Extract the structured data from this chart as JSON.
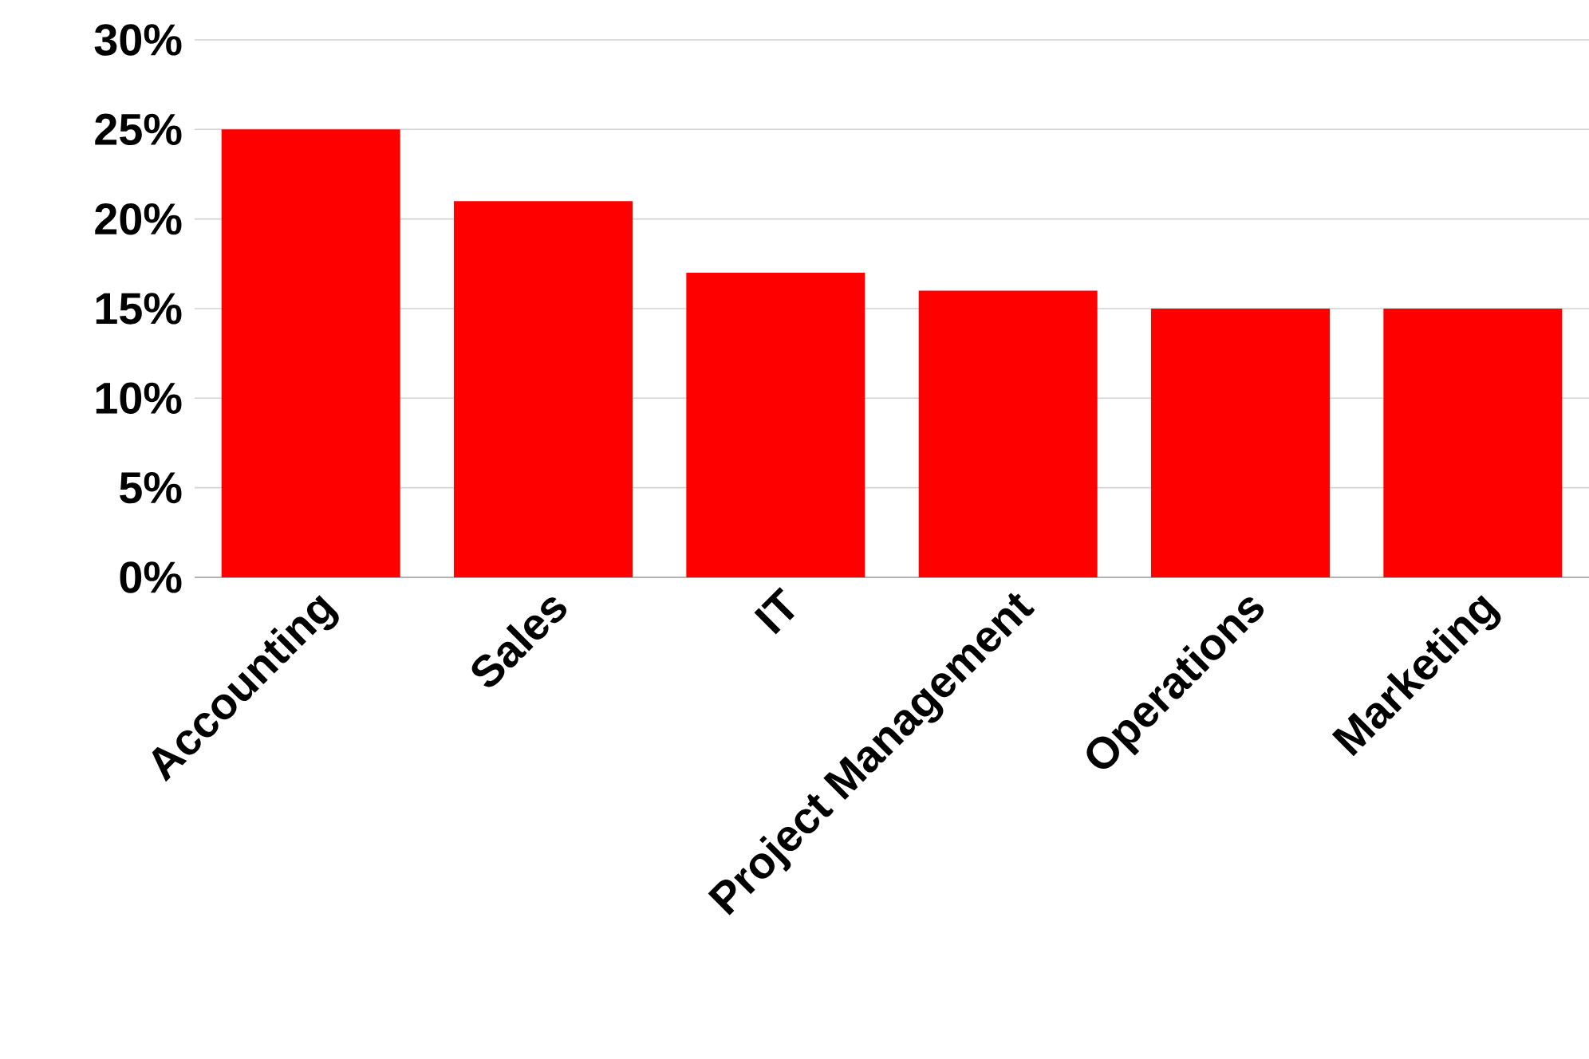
{
  "chart_data": {
    "type": "bar",
    "categories": [
      "Accounting",
      "Sales",
      "IT",
      "Project Management",
      "Operations",
      "Marketing"
    ],
    "values": [
      25,
      21,
      17,
      16,
      15,
      15
    ],
    "color": "#ff0000",
    "ylim": [
      0,
      30
    ],
    "yticks": [
      {
        "value": 0,
        "label": "0%"
      },
      {
        "value": 5,
        "label": "5%"
      },
      {
        "value": 10,
        "label": "10%"
      },
      {
        "value": 15,
        "label": "15%"
      },
      {
        "value": 20,
        "label": "20%"
      },
      {
        "value": 25,
        "label": "25%"
      },
      {
        "value": 30,
        "label": "30%"
      }
    ],
    "grid": "y"
  }
}
